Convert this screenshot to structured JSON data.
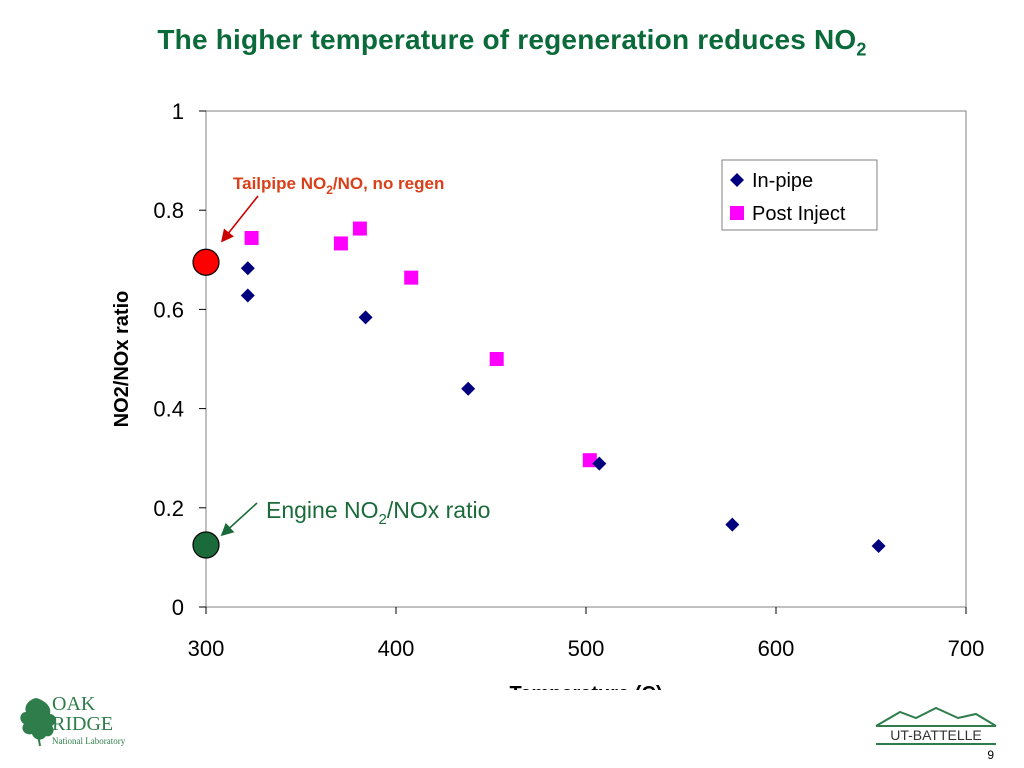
{
  "slide": {
    "title_main": "The higher temperature of regeneration reduces NO",
    "title_sub": "2",
    "page_number": "9"
  },
  "colors": {
    "title_green": "#0b6a3a",
    "series_inpipe": "#00007f",
    "series_postinject": "#ff00ff",
    "tailpipe_marker": "#ff0000",
    "engine_marker": "#1b6b3a",
    "annotation_red": "#d9401a"
  },
  "chart_data": {
    "type": "scatter",
    "xlabel": "Temperature (C)",
    "ylabel": "NO2/NOx ratio",
    "xlim": [
      300,
      700
    ],
    "ylim": [
      0,
      1
    ],
    "xticks": [
      "300",
      "400",
      "500",
      "600",
      "700"
    ],
    "yticks": [
      "0",
      "0.2",
      "0.4",
      "0.6",
      "0.8",
      "1"
    ],
    "grid": false,
    "legend_position": "top-right",
    "series": [
      {
        "name": "In-pipe",
        "marker": "diamond",
        "x": [
          322,
          322,
          384,
          438,
          507,
          577,
          654
        ],
        "y": [
          0.683,
          0.628,
          0.584,
          0.44,
          0.289,
          0.166,
          0.123
        ]
      },
      {
        "name": "Post Inject",
        "marker": "square",
        "x": [
          324,
          371,
          381,
          408,
          453,
          502
        ],
        "y": [
          0.744,
          0.733,
          0.763,
          0.664,
          0.5,
          0.296
        ]
      }
    ],
    "annotations": {
      "tailpipe": {
        "text_pre": "Tailpipe NO",
        "text_sub": "2",
        "text_post": "/NO, no regen",
        "x": 300,
        "y": 0.695
      },
      "engine": {
        "text_pre": "Engine NO",
        "text_sub": "2",
        "text_post": "/NOx ratio",
        "x": 300,
        "y": 0.125
      }
    }
  },
  "logos": {
    "oak_line1": "OAK",
    "oak_line2": "RIDGE",
    "oak_line3": "National Laboratory",
    "ut_text": "UT-BATTELLE"
  }
}
